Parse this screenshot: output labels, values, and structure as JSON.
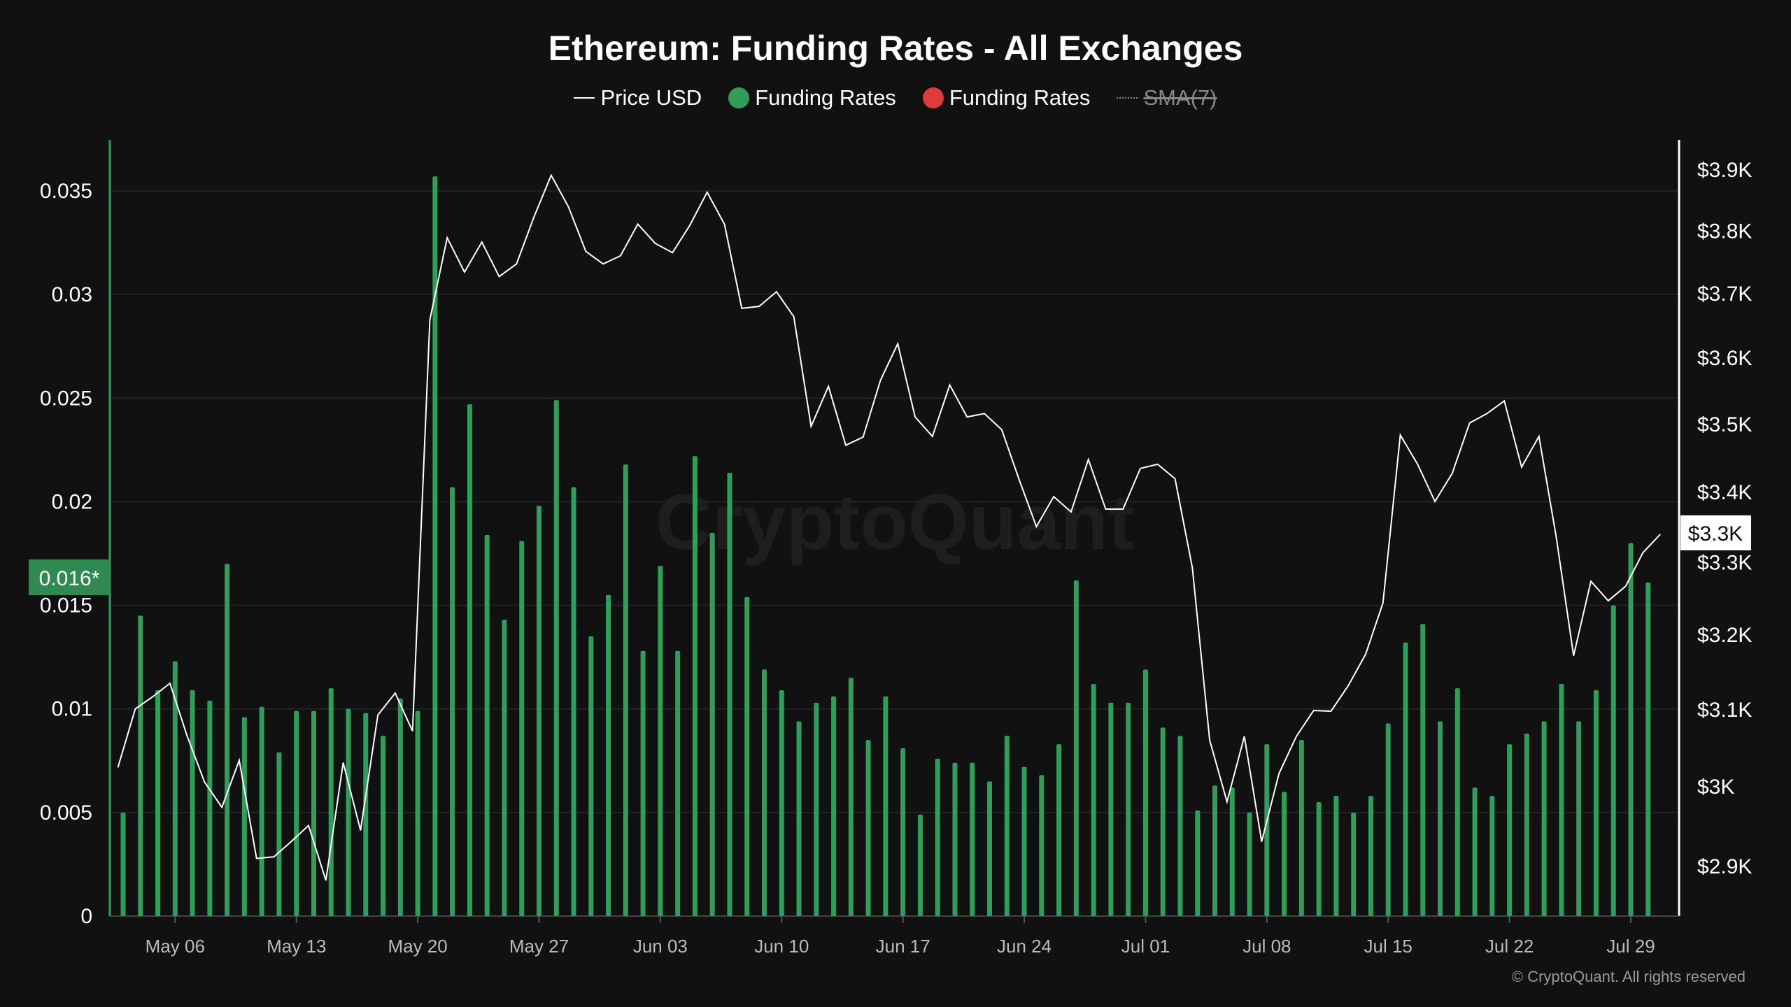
{
  "chart_data": {
    "type": "bar+line",
    "title": "Ethereum: Funding Rates - All Exchanges",
    "legend": [
      {
        "label": "Price USD",
        "style": "line",
        "color": "#ffffff"
      },
      {
        "label": "Funding Rates",
        "style": "dot",
        "color": "#2f9e5a"
      },
      {
        "label": "Funding Rates",
        "style": "dot",
        "color": "#e03a3a"
      },
      {
        "label": "SMA(7)",
        "style": "dotted",
        "color": "#888888",
        "disabled": true
      }
    ],
    "legend_placement": "top-center",
    "x_tick_labels": [
      "May 06",
      "May 13",
      "May 20",
      "May 27",
      "Jun 03",
      "Jun 10",
      "Jun 17",
      "Jun 24",
      "Jul 01",
      "Jul 08",
      "Jul 15",
      "Jul 22",
      "Jul 29"
    ],
    "x_tick_day_offsets": [
      3,
      10,
      17,
      24,
      31,
      38,
      45,
      52,
      59,
      66,
      73,
      80,
      87
    ],
    "x_start_date": "May 03",
    "left_axis": {
      "label": "Funding Rates",
      "ylim": [
        0,
        0.0375
      ],
      "ticks": [
        0,
        0.005,
        0.01,
        0.015,
        0.02,
        0.025,
        0.03,
        0.035
      ],
      "tick_labels": [
        "0",
        "0.005",
        "0.01",
        "0.015",
        "0.02",
        "0.025",
        "0.03",
        "0.035"
      ]
    },
    "right_axis": {
      "label": "Price USD",
      "scale": "log",
      "ylim": [
        2840,
        3900
      ],
      "ticks": [
        3900,
        3800,
        3700,
        3600,
        3500,
        3400,
        3300,
        3200,
        3100,
        3000,
        2900
      ],
      "tick_labels": [
        "$3.9K",
        "$3.8K",
        "$3.7K",
        "$3.6K",
        "$3.5K",
        "$3.4K",
        "$3.3K",
        "$3.2K",
        "$3.1K",
        "$3K",
        "$2.9K"
      ]
    },
    "funding_rates": {
      "name": "Funding Rates",
      "color": "#2f9e5a",
      "values": [
        0.005,
        0.0145,
        0.0109,
        0.0123,
        0.0109,
        0.0104,
        0.017,
        0.0096,
        0.0101,
        0.0079,
        0.0099,
        0.0099,
        0.011,
        0.01,
        0.0098,
        0.0087,
        0.0105,
        0.0099,
        0.0357,
        0.0207,
        0.0247,
        0.0184,
        0.0143,
        0.0181,
        0.0198,
        0.0249,
        0.0207,
        0.0135,
        0.0155,
        0.0218,
        0.0128,
        0.0169,
        0.0128,
        0.0222,
        0.0185,
        0.0214,
        0.0154,
        0.0119,
        0.0109,
        0.0094,
        0.0103,
        0.0106,
        0.0115,
        0.0085,
        0.0106,
        0.0081,
        0.0049,
        0.0076,
        0.0074,
        0.0074,
        0.0065,
        0.0087,
        0.0072,
        0.0068,
        0.0083,
        0.0162,
        0.0112,
        0.0103,
        0.0103,
        0.0119,
        0.0091,
        0.0087,
        0.0051,
        0.0063,
        0.0062,
        0.005,
        0.0083,
        0.006,
        0.0085,
        0.0055,
        0.0058,
        0.005,
        0.0058,
        0.0093,
        0.0132,
        0.0141,
        0.0094,
        0.011,
        0.0062,
        0.0058,
        0.0083,
        0.0088,
        0.0094,
        0.0112,
        0.0094,
        0.0109,
        0.015,
        0.018,
        0.0161
      ]
    },
    "price_usd": {
      "name": "Price USD",
      "start_day_offset": -1,
      "values": [
        3024,
        3100,
        3116,
        3134,
        3064,
        3005,
        2973,
        3033,
        2909,
        2911,
        2930,
        2950,
        2882,
        3030,
        2944,
        3092,
        3121,
        3071,
        3658,
        3788,
        3733,
        3781,
        3726,
        3746,
        3821,
        3890,
        3838,
        3766,
        3746,
        3759,
        3810,
        3779,
        3764,
        3808,
        3862,
        3810,
        3676,
        3679,
        3702,
        3663,
        3496,
        3556,
        3468,
        3480,
        3565,
        3621,
        3510,
        3481,
        3558,
        3510,
        3515,
        3491,
        3418,
        3350,
        3393,
        3371,
        3447,
        3375,
        3375,
        3434,
        3440,
        3419,
        3292,
        3059,
        2980,
        3064,
        2930,
        3016,
        3064,
        3098,
        3097,
        3131,
        3173,
        3243,
        3483,
        3440,
        3386,
        3427,
        3501,
        3515,
        3534,
        3436,
        3481,
        3335,
        3171,
        3273,
        3246,
        3266,
        3313,
        3339
      ]
    },
    "current_value_badges": {
      "funding_rate": "0.016*",
      "price": "$3.3K"
    },
    "grid": true
  },
  "watermark": "CryptoQuant",
  "copyright": "© CryptoQuant. All rights reserved"
}
